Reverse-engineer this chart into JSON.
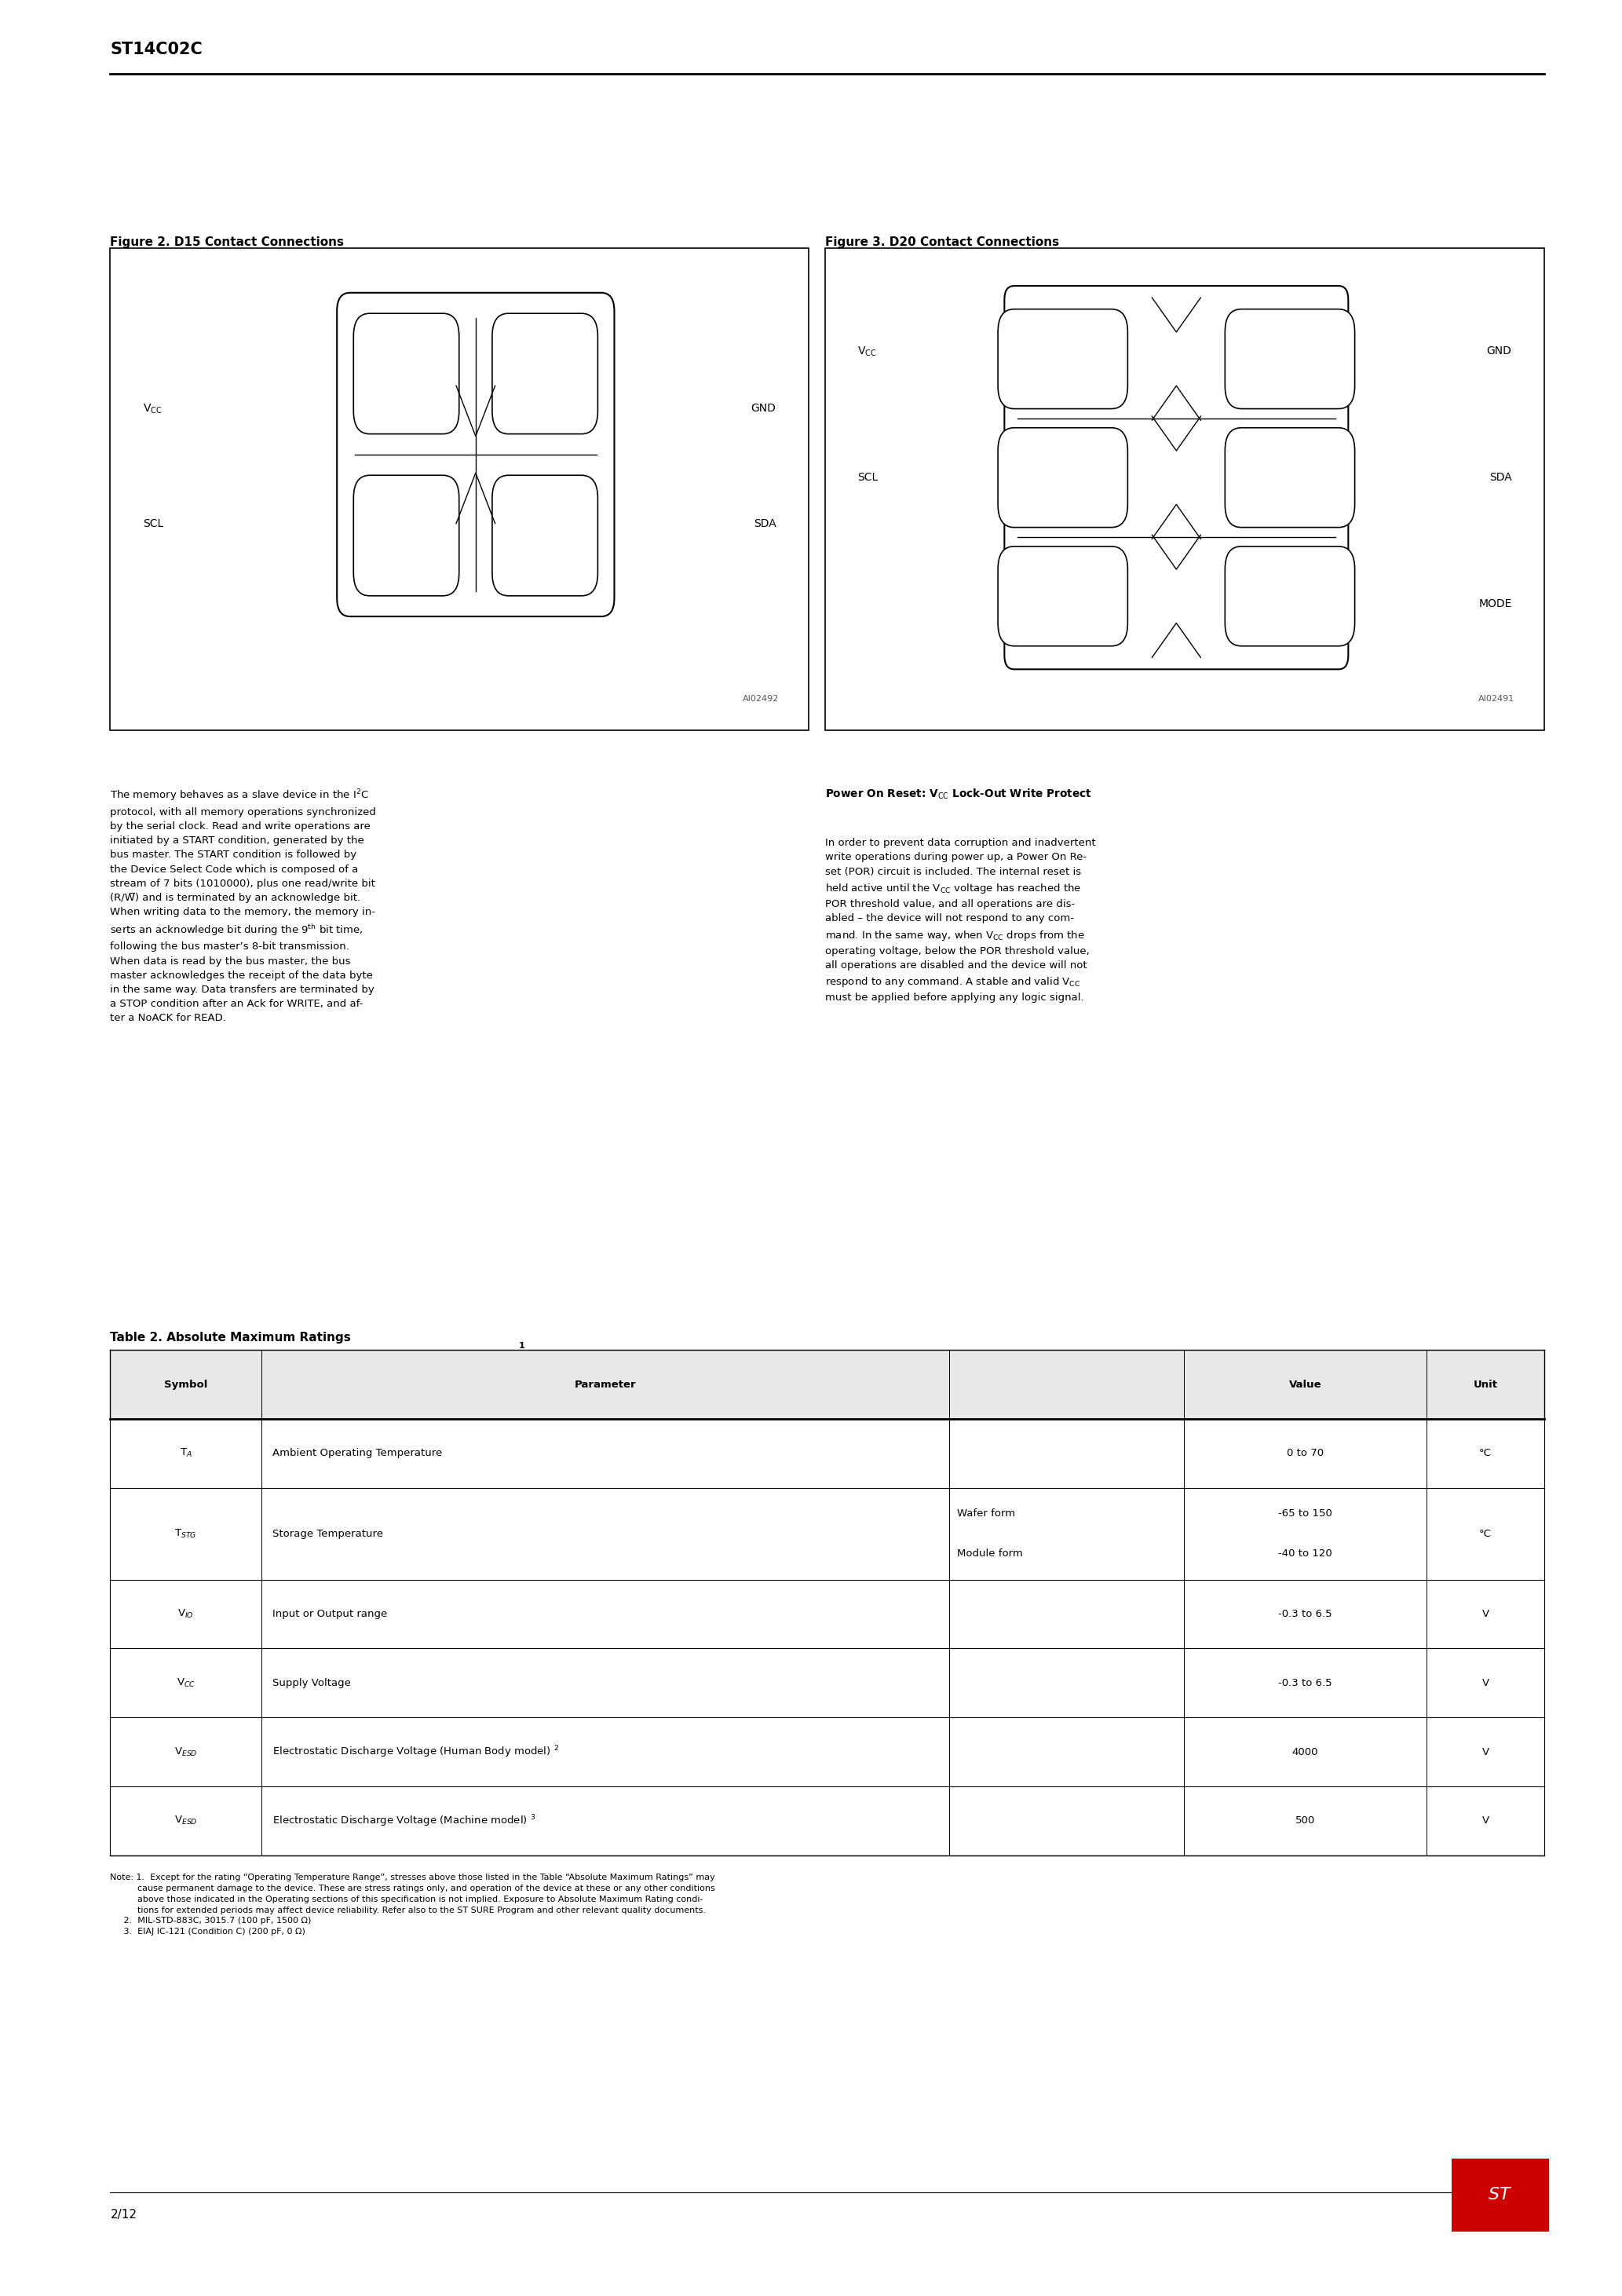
{
  "page_title": "ST14C02C",
  "fig_width": 20.66,
  "fig_height": 29.24,
  "bg_color": "#ffffff",
  "text_color": "#000000",
  "fig2_title": "Figure 2. D15 Contact Connections",
  "fig3_title": "Figure 3. D20 Contact Connections",
  "footer_left": "2/12",
  "table_title": "Table 2. Absolute Maximum Ratings ",
  "table_title_sup": "1"
}
